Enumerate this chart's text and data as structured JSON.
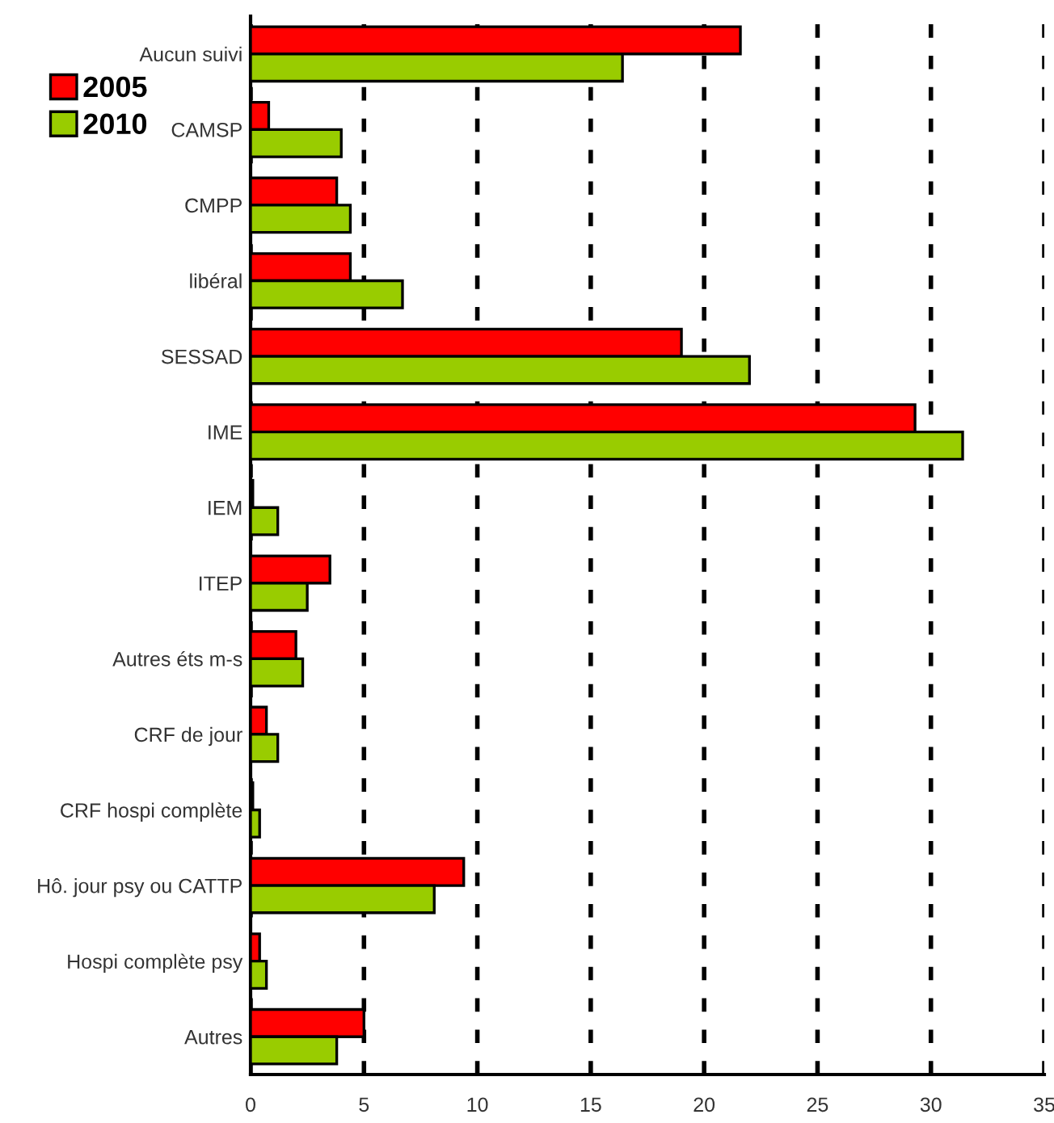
{
  "chart_data": {
    "type": "bar",
    "orientation": "horizontal",
    "categories": [
      "Aucun suivi",
      "CAMSP",
      "CMPP",
      "libéral",
      "SESSAD",
      "IME",
      "IEM",
      "ITEP",
      "Autres éts m-s",
      "CRF de jour",
      "CRF hospi complète",
      "Hô. jour psy ou CATTP",
      "Hospi complète psy",
      "Autres"
    ],
    "series": [
      {
        "name": "2005",
        "color": "#ff0000",
        "values": [
          21.6,
          0.8,
          3.8,
          4.4,
          19.0,
          29.3,
          0.1,
          3.5,
          2.0,
          0.7,
          0.1,
          9.4,
          0.4,
          5.0
        ]
      },
      {
        "name": "2010",
        "color": "#99cc00",
        "values": [
          16.4,
          4.0,
          4.4,
          6.7,
          22.0,
          31.4,
          1.2,
          2.5,
          2.3,
          1.2,
          0.4,
          8.1,
          0.7,
          3.8
        ]
      }
    ],
    "xlim": [
      0,
      35
    ],
    "xticks": [
      0,
      5,
      10,
      15,
      20,
      25,
      30,
      35
    ],
    "grid": "x",
    "legend": "top left"
  }
}
